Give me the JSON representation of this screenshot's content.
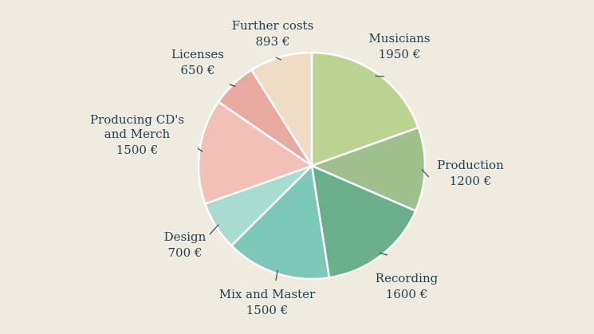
{
  "chart_data": {
    "type": "pie",
    "title": "",
    "slices": [
      {
        "name": "Musicians",
        "label_lines": [
          "Musicians"
        ],
        "value": 1950,
        "value_label": "1950 €",
        "color": "#bcd394"
      },
      {
        "name": "Production",
        "label_lines": [
          "Production"
        ],
        "value": 1200,
        "value_label": "1200 €",
        "color": "#9fbf8c"
      },
      {
        "name": "Recording",
        "label_lines": [
          "Recording"
        ],
        "value": 1600,
        "value_label": "1600 €",
        "color": "#6aae8c"
      },
      {
        "name": "Mix and Master",
        "label_lines": [
          "Mix and Master"
        ],
        "value": 1500,
        "value_label": "1500 €",
        "color": "#7ec8b8"
      },
      {
        "name": "Design",
        "label_lines": [
          "Design"
        ],
        "value": 700,
        "value_label": "700 €",
        "color": "#a8dcd0"
      },
      {
        "name": "Producing CD's and Merch",
        "label_lines": [
          "Producing CD's",
          "and Merch"
        ],
        "value": 1500,
        "value_label": "1500 €",
        "color": "#f3c0b8"
      },
      {
        "name": "Licenses",
        "label_lines": [
          "Licenses"
        ],
        "value": 650,
        "value_label": "650 €",
        "color": "#e9aaa0"
      },
      {
        "name": "Further costs",
        "label_lines": [
          "Further costs"
        ],
        "value": 893,
        "value_label": "893 €",
        "color": "#f0dcc4"
      }
    ]
  }
}
